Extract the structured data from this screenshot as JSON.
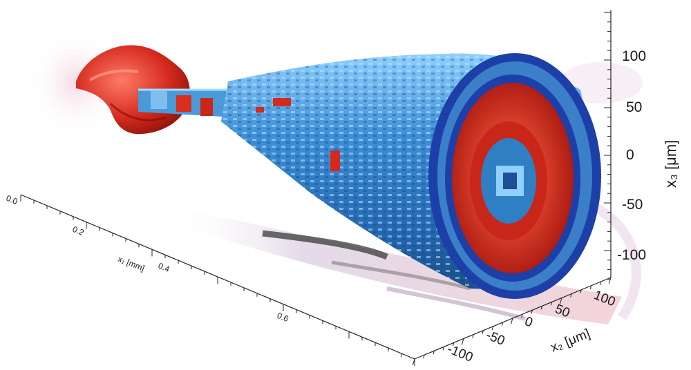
{
  "figure": {
    "axes": {
      "x1": {
        "title": "x₁ [mm]",
        "ticks": [
          "0.0",
          "0.2",
          "0.4",
          "0.6"
        ]
      },
      "x2": {
        "title": "x₂ [μm]",
        "ticks": [
          "100",
          "50",
          "0",
          "-50",
          "-100"
        ]
      },
      "x3": {
        "title": "x₃ [μm]",
        "ticks": [
          "100",
          "50",
          "0",
          "-50",
          "-100"
        ]
      }
    },
    "colors": {
      "positive_isosurface": "#d42a1e",
      "negative_isosurface": "#2f7fc4",
      "deep_blue_rim": "#1d3fa8",
      "shadow": "#3a3a3a",
      "background": "#ffffff"
    }
  }
}
